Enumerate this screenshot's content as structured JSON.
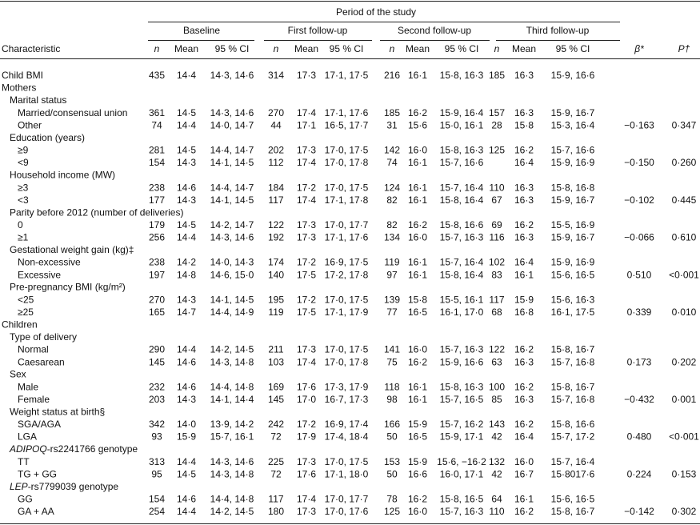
{
  "table": {
    "spanner": "Period of the study",
    "periods": [
      "Baseline",
      "First follow-up",
      "Second follow-up",
      "Third follow-up"
    ],
    "columns": {
      "characteristic": "Characteristic",
      "n": "n",
      "mean": "Mean",
      "ci": "95 % CI",
      "beta": "β*",
      "p": "P†"
    },
    "summary_row": {
      "label": "Child BMI",
      "cells": [
        "435",
        "14·4",
        "14·3, 14·6",
        "314",
        "17·3",
        "17·1, 17·5",
        "216",
        "16·1",
        "15·8, 16·3",
        "185",
        "16·3",
        "15·9, 16·6"
      ]
    },
    "sections": [
      {
        "title": "Mothers",
        "groups": [
          {
            "title": "Marital status",
            "rows": [
              {
                "label": "Married/consensual union",
                "cells": [
                  "361",
                  "14·5",
                  "14·3, 14·6",
                  "270",
                  "17·4",
                  "17·1, 17·6",
                  "185",
                  "16·2",
                  "15·9, 16·4",
                  "157",
                  "16·3",
                  "15·9, 16·7"
                ]
              },
              {
                "label": "Other",
                "cells": [
                  "74",
                  "14·4",
                  "14·0, 14·7",
                  "44",
                  "17·1",
                  "16·5, 17·7",
                  "31",
                  "15·6",
                  "15·0, 16·1",
                  "28",
                  "15·8",
                  "15·3, 16·4"
                ],
                "beta": "−0·163",
                "p": "0·347"
              }
            ]
          },
          {
            "title": "Education (years)",
            "rows": [
              {
                "label": "≥9",
                "cells": [
                  "281",
                  "14·5",
                  "14·4, 14·7",
                  "202",
                  "17·3",
                  "17·0, 17·5",
                  "142",
                  "16·0",
                  "15·8, 16·3",
                  "125",
                  "16·2",
                  "15·7, 16·6"
                ]
              },
              {
                "label": "<9",
                "cells": [
                  "154",
                  "14·3",
                  "14·1, 14·5",
                  "112",
                  "17·4",
                  "17·0, 17·8",
                  "74",
                  "16·1",
                  "15·7, 16·6",
                  null,
                  "16·4",
                  "15·9, 16·9"
                ],
                "beta": "−0·150",
                "p": "0·260"
              }
            ]
          },
          {
            "title": "Household income (MW)",
            "rows": [
              {
                "label": "≥3",
                "cells": [
                  "238",
                  "14·6",
                  "14·4, 14·7",
                  "184",
                  "17·2",
                  "17·0, 17·5",
                  "124",
                  "16·1",
                  "15·7, 16·4",
                  "110",
                  "16·3",
                  "15·8, 16·8"
                ]
              },
              {
                "label": "<3",
                "cells": [
                  "177",
                  "14·3",
                  "14·1, 14·5",
                  "117",
                  "17·4",
                  "17·1, 17·8",
                  "82",
                  "16·1",
                  "15·8, 16·4",
                  "67",
                  "16·3",
                  "15·9, 16·7"
                ],
                "beta": "−0·102",
                "p": "0·445"
              }
            ]
          },
          {
            "title": "Parity before 2012 (number of deliveries)",
            "rows": [
              {
                "label": "0",
                "cells": [
                  "179",
                  "14·5",
                  "14·2, 14·7",
                  "122",
                  "17·3",
                  "17·0, 17·7",
                  "82",
                  "16·2",
                  "15·8, 16·6",
                  "69",
                  "16·2",
                  "15·5, 16·9"
                ]
              },
              {
                "label": "≥1",
                "cells": [
                  "256",
                  "14·4",
                  "14·3, 14·6",
                  "192",
                  "17·3",
                  "17·1, 17·6",
                  "134",
                  "16·0",
                  "15·7, 16·3",
                  "116",
                  "16·3",
                  "15·9, 16·7"
                ],
                "beta": "−0·066",
                "p": "0·610"
              }
            ]
          },
          {
            "title": "Gestational weight gain (kg)‡",
            "rows": [
              {
                "label": "Non-excessive",
                "cells": [
                  "238",
                  "14·2",
                  "14·0, 14·3",
                  "174",
                  "17·2",
                  "16·9, 17·5",
                  "119",
                  "16·1",
                  "15·7, 16·4",
                  "102",
                  "16·4",
                  "15·9, 16·9"
                ]
              },
              {
                "label": "Excessive",
                "cells": [
                  "197",
                  "14·8",
                  "14·6, 15·0",
                  "140",
                  "17·5",
                  "17·2, 17·8",
                  "97",
                  "16·1",
                  "15·8, 16·4",
                  "83",
                  "16·1",
                  "15·6, 16·5"
                ],
                "beta": "0·510",
                "p": "<0·001"
              }
            ]
          },
          {
            "title": "Pre-pregnancy BMI (kg/m²)",
            "rows": [
              {
                "label": "<25",
                "cells": [
                  "270",
                  "14·3",
                  "14·1, 14·5",
                  "195",
                  "17·2",
                  "17·0, 17·5",
                  "139",
                  "15·8",
                  "15·5, 16·1",
                  "117",
                  "15·9",
                  "15·6, 16·3"
                ]
              },
              {
                "label": "≥25",
                "cells": [
                  "165",
                  "14·7",
                  "14·4, 14·9",
                  "119",
                  "17·5",
                  "17·1, 17·9",
                  "77",
                  "16·5",
                  "16·1, 17·0",
                  "68",
                  "16·8",
                  "16·1, 17·5"
                ],
                "beta": "0·339",
                "p": "0·010"
              }
            ]
          }
        ]
      },
      {
        "title": "Children",
        "groups": [
          {
            "title": "Type of delivery",
            "rows": [
              {
                "label": "Normal",
                "cells": [
                  "290",
                  "14·4",
                  "14·2, 14·5",
                  "211",
                  "17·3",
                  "17·0, 17·5",
                  "141",
                  "16·0",
                  "15·7, 16·3",
                  "122",
                  "16·2",
                  "15·8, 16·7"
                ]
              },
              {
                "label": "Caesarean",
                "cells": [
                  "145",
                  "14·6",
                  "14·3, 14·8",
                  "103",
                  "17·4",
                  "17·0, 17·8",
                  "75",
                  "16·2",
                  "15·9, 16·6",
                  "63",
                  "16·3",
                  "15·7, 16·8"
                ],
                "beta": "0·173",
                "p": "0·202"
              }
            ]
          },
          {
            "title": "Sex",
            "rows": [
              {
                "label": "Male",
                "cells": [
                  "232",
                  "14·6",
                  "14·4, 14·8",
                  "169",
                  "17·6",
                  "17·3, 17·9",
                  "118",
                  "16·1",
                  "15·8, 16·3",
                  "100",
                  "16·2",
                  "15·8, 16·7"
                ]
              },
              {
                "label": "Female",
                "cells": [
                  "203",
                  "14·3",
                  "14·1, 14·4",
                  "145",
                  "17·0",
                  "16·7, 17·3",
                  "98",
                  "16·1",
                  "15·7, 16·5",
                  "85",
                  "16·3",
                  "15·7, 16·8"
                ],
                "beta": "−0·432",
                "p": "0·001"
              }
            ]
          },
          {
            "title": "Weight status at birth§",
            "rows": [
              {
                "label": "SGA/AGA",
                "cells": [
                  "342",
                  "14·0",
                  "13·9, 14·2",
                  "242",
                  "17·2",
                  "16·9, 17·4",
                  "166",
                  "15·9",
                  "15·7, 16·2",
                  "143",
                  "16·2",
                  "15·8, 16·6"
                ]
              },
              {
                "label": "LGA",
                "cells": [
                  "93",
                  "15·9",
                  "15·7, 16·1",
                  "72",
                  "17·9",
                  "17·4, 18·4",
                  "50",
                  "16·5",
                  "15·9, 17·1",
                  "42",
                  "16·4",
                  "15·7, 17·2"
                ],
                "beta": "0·480",
                "p": "<0·001"
              }
            ]
          },
          {
            "title_italic": "ADIPOQ",
            "title": "-rs2241766 genotype",
            "rows": [
              {
                "label": "TT",
                "cells": [
                  "313",
                  "14·4",
                  "14·3, 14·6",
                  "225",
                  "17·3",
                  "17·0, 17·5",
                  "153",
                  "15·9",
                  "15·6, −16·2",
                  "132",
                  "16·0",
                  "15·7, 16·4"
                ]
              },
              {
                "label": "TG + GG",
                "cells": [
                  "95",
                  "14·5",
                  "14·3, 14·8",
                  "72",
                  "17·6",
                  "17·1, 18·0",
                  "50",
                  "16·6",
                  "16·0, 17·1",
                  "42",
                  "16·7",
                  "15·8017·6"
                ],
                "beta": "0·224",
                "p": "0·153"
              }
            ]
          },
          {
            "title_italic": "LEP",
            "title": "-rs7799039 genotype",
            "rows": [
              {
                "label": "GG",
                "cells": [
                  "154",
                  "14·6",
                  "14·4, 14·8",
                  "117",
                  "17·4",
                  "17·0, 17·7",
                  "78",
                  "16·2",
                  "15·8, 16·5",
                  "64",
                  "16·1",
                  "15·6, 16·5"
                ]
              },
              {
                "label": "GA + AA",
                "cells": [
                  "254",
                  "14·4",
                  "14·2, 14·5",
                  "180",
                  "17·3",
                  "17·0, 17·6",
                  "125",
                  "16·0",
                  "15·7, 16·3",
                  "110",
                  "16·2",
                  "15·8, 16·7"
                ],
                "beta": "−0·142",
                "p": "0·302"
              }
            ]
          }
        ]
      }
    ]
  }
}
